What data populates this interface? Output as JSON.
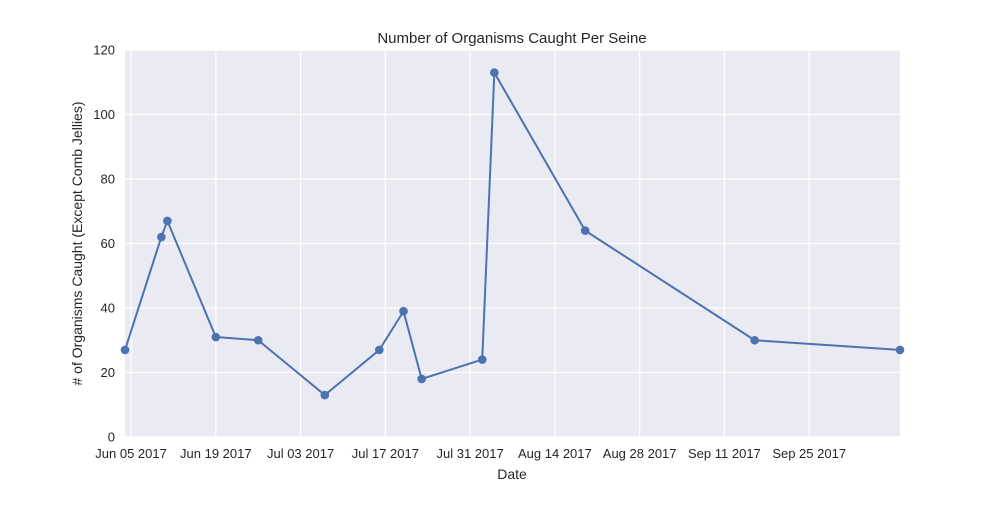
{
  "chart_data": {
    "type": "line",
    "title": "Number of Organisms Caught Per Seine",
    "xlabel": "Date",
    "ylabel": "# of Organisms Caught (Except Comb Jellies)",
    "x_axis_type": "date",
    "xlim": [
      "2017-06-04",
      "2017-10-10"
    ],
    "ylim": [
      0,
      120
    ],
    "grid": true,
    "legend": "none",
    "x_ticks": [
      {
        "date": "2017-06-05",
        "label": "Jun 05 2017"
      },
      {
        "date": "2017-06-19",
        "label": "Jun 19 2017"
      },
      {
        "date": "2017-07-03",
        "label": "Jul 03 2017"
      },
      {
        "date": "2017-07-17",
        "label": "Jul 17 2017"
      },
      {
        "date": "2017-07-31",
        "label": "Jul 31 2017"
      },
      {
        "date": "2017-08-14",
        "label": "Aug 14 2017"
      },
      {
        "date": "2017-08-28",
        "label": "Aug 28 2017"
      },
      {
        "date": "2017-09-11",
        "label": "Sep 11 2017"
      },
      {
        "date": "2017-09-25",
        "label": "Sep 25 2017"
      }
    ],
    "y_ticks": [
      {
        "value": 0,
        "label": "0"
      },
      {
        "value": 20,
        "label": "20"
      },
      {
        "value": 40,
        "label": "40"
      },
      {
        "value": 60,
        "label": "60"
      },
      {
        "value": 80,
        "label": "80"
      },
      {
        "value": 100,
        "label": "100"
      },
      {
        "value": 120,
        "label": "120"
      }
    ],
    "series": [
      {
        "color": "#4c72b0",
        "points": [
          {
            "x": "2017-06-04",
            "y": 27
          },
          {
            "x": "2017-06-10",
            "y": 62
          },
          {
            "x": "2017-06-11",
            "y": 67
          },
          {
            "x": "2017-06-19",
            "y": 31
          },
          {
            "x": "2017-06-26",
            "y": 30
          },
          {
            "x": "2017-07-07",
            "y": 13
          },
          {
            "x": "2017-07-16",
            "y": 27
          },
          {
            "x": "2017-07-20",
            "y": 39
          },
          {
            "x": "2017-07-23",
            "y": 18
          },
          {
            "x": "2017-08-02",
            "y": 24
          },
          {
            "x": "2017-08-04",
            "y": 113
          },
          {
            "x": "2017-08-19",
            "y": 64
          },
          {
            "x": "2017-09-16",
            "y": 30
          },
          {
            "x": "2017-10-10",
            "y": 27
          }
        ]
      }
    ]
  },
  "colors": {
    "plot_background": "#eaeaf2",
    "grid": "#ffffff",
    "line": "#4c72b0"
  }
}
